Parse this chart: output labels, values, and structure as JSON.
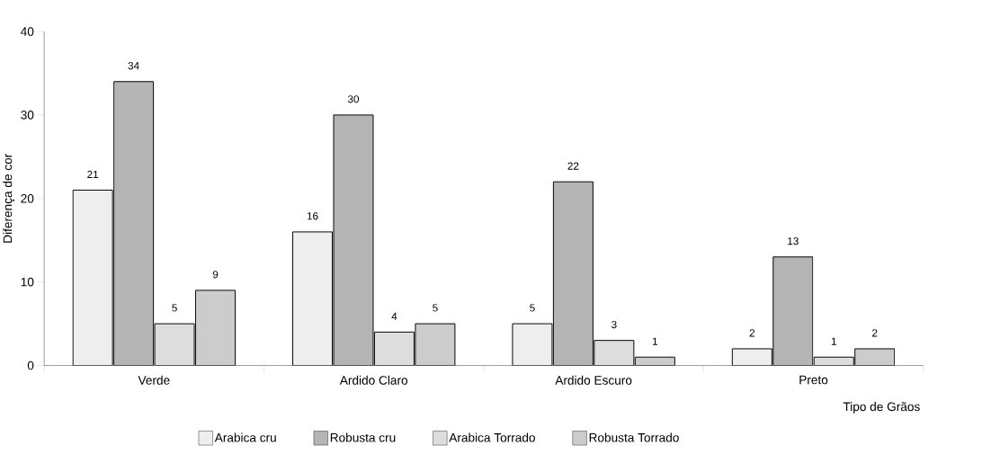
{
  "chart_data": {
    "type": "bar",
    "xlabel": "Tipo de Grãos",
    "ylabel": "Diferença de cor",
    "categories": [
      "Verde",
      "Ardido Claro",
      "Ardido Escuro",
      "Preto"
    ],
    "series": [
      {
        "name": "Arabica cru",
        "color": "#eeeeee",
        "values": [
          21,
          16,
          5,
          2
        ]
      },
      {
        "name": "Robusta cru",
        "color": "#b4b4b4",
        "values": [
          34,
          30,
          22,
          13
        ]
      },
      {
        "name": "Arabica Torrado",
        "color": "#dddddd",
        "values": [
          5,
          4,
          3,
          1
        ]
      },
      {
        "name": "Robusta Torrado",
        "color": "#cccccc",
        "values": [
          9,
          5,
          1,
          2
        ]
      }
    ],
    "ylim": [
      0,
      40
    ],
    "yticks": [
      0,
      10,
      20,
      30,
      40
    ],
    "data_labels": true,
    "legend": "bottom",
    "grid": false
  }
}
